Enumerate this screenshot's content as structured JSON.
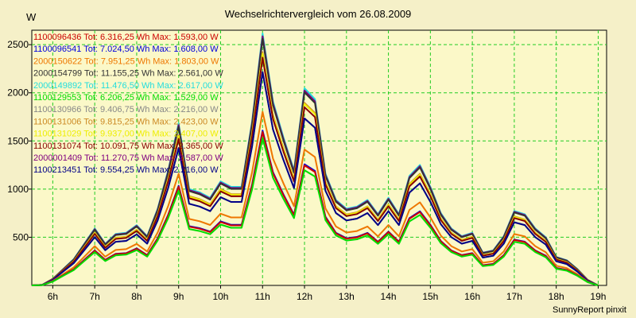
{
  "chart_data": {
    "type": "line",
    "title": "Wechselrichtervergleich vom 26.08.2009",
    "ylabel": "W",
    "footer": "SunnyReport pinxit",
    "ylim": [
      0,
      2650
    ],
    "xlim": [
      5.5,
      19.2
    ],
    "yticks": [
      500,
      1000,
      1500,
      2000,
      2500
    ],
    "xticks": [
      {
        "v": 6,
        "label": "6h"
      },
      {
        "v": 7,
        "label": "7h"
      },
      {
        "v": 8,
        "label": "8h"
      },
      {
        "v": 9,
        "label": "9h"
      },
      {
        "v": 10,
        "label": "10h"
      },
      {
        "v": 11,
        "label": "11h"
      },
      {
        "v": 12,
        "label": "12h"
      },
      {
        "v": 13,
        "label": "13h"
      },
      {
        "v": 14,
        "label": "14h"
      },
      {
        "v": 15,
        "label": "15h"
      },
      {
        "v": 16,
        "label": "16h"
      },
      {
        "v": 17,
        "label": "17h"
      },
      {
        "v": 18,
        "label": "18h"
      },
      {
        "v": 19,
        "label": "19h"
      }
    ],
    "grid": true,
    "legend_position": "top-left",
    "x": [
      5.5,
      5.75,
      6.0,
      6.25,
      6.5,
      6.75,
      7.0,
      7.25,
      7.5,
      7.75,
      8.0,
      8.25,
      8.5,
      8.75,
      9.0,
      9.25,
      9.5,
      9.75,
      10.0,
      10.25,
      10.5,
      10.75,
      11.0,
      11.25,
      11.5,
      11.75,
      12.0,
      12.25,
      12.5,
      12.75,
      13.0,
      13.25,
      13.5,
      13.75,
      14.0,
      14.25,
      14.5,
      14.75,
      15.0,
      15.25,
      15.5,
      15.75,
      16.0,
      16.25,
      16.5,
      16.75,
      17.0,
      17.25,
      17.5,
      17.75,
      18.0,
      18.25,
      18.5,
      18.75,
      19.0
    ],
    "base": [
      0,
      5,
      60,
      150,
      240,
      380,
      520,
      380,
      470,
      480,
      550,
      450,
      700,
      1050,
      1480,
      880,
      850,
      800,
      950,
      900,
      900,
      1500,
      2300,
      1680,
      1350,
      1050,
      1800,
      1700,
      1020,
      780,
      700,
      720,
      780,
      650,
      800,
      650,
      1000,
      1100,
      900,
      660,
      520,
      450,
      480,
      300,
      320,
      450,
      680,
      650,
      520,
      440,
      260,
      230,
      150,
      50,
      0
    ],
    "series": [
      {
        "name": "1100096436 Tot: 6.316,25 Wh Max: 1.593,00 W",
        "color": "#cc0000",
        "peak": 1593
      },
      {
        "name": "1100096541 Tot: 7.024,50 Wh Max: 1.608,00 W",
        "color": "#0000dd",
        "peak": 1608
      },
      {
        "name": "2000150622 Tot: 7.951,25 Wh Max: 1.803,00 W",
        "color": "#ee7700",
        "peak": 1803
      },
      {
        "name": "2000154799 Tot: 11.155,25 Wh Max: 2.561,00 W",
        "color": "#333333",
        "peak": 2561
      },
      {
        "name": "2000149892 Tot: 11.476,50 Wh Max: 2.617,00 W",
        "color": "#22dddd",
        "peak": 2617
      },
      {
        "name": "1100129553 Tot: 6.206,25 Wh Max: 1.529,00 W",
        "color": "#00dd00",
        "peak": 1529
      },
      {
        "name": "1100130966 Tot: 9.406,75 Wh Max: 2.216,00 W",
        "color": "#888888",
        "peak": 2216
      },
      {
        "name": "1100131006 Tot: 9.815,25 Wh Max: 2.423,00 W",
        "color": "#cc8822",
        "peak": 2423
      },
      {
        "name": "1100131029 Tot: 9.937,00 Wh Max: 2.407,00 W",
        "color": "#eeee00",
        "peak": 2407
      },
      {
        "name": "1100131074 Tot: 10.091,75 Wh Max: 2.365,00 W",
        "color": "#880000",
        "peak": 2365
      },
      {
        "name": "2000001409 Tot: 11.270,75 Wh Max: 2.587,00 W",
        "color": "#800080",
        "peak": 2587
      },
      {
        "name": "1100213451 Tot: 9.554,25 Wh Max: 2.216,00 W",
        "color": "#000088",
        "peak": 2216
      }
    ]
  }
}
